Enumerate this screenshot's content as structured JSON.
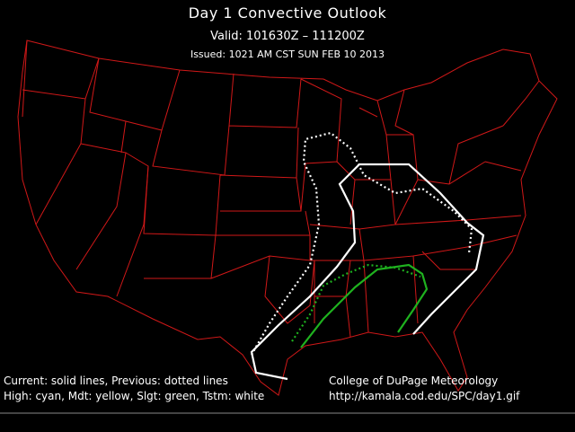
{
  "header": {
    "title": "Day 1 Convective Outlook",
    "valid": "Valid: 101630Z – 111200Z",
    "issued": "Issued: 1021 AM CST SUN FEB 10 2013"
  },
  "legend": {
    "lines": [
      "Current: solid lines, Previous: dotted lines",
      "High: cyan, Mdt: yellow, Slgt: green, Tstm: white"
    ]
  },
  "credit": {
    "lines": [
      "College of DuPage Meteorology",
      "http://kamala.cod.edu/SPC/day1.gif"
    ]
  }
}
